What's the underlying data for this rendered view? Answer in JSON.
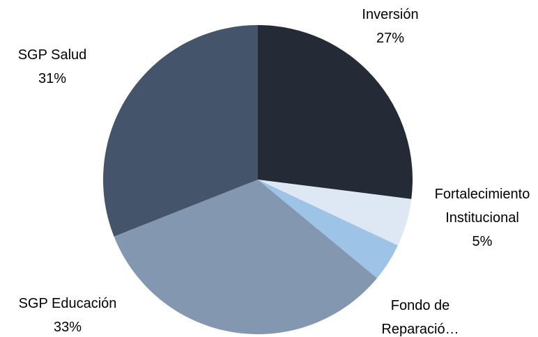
{
  "chart_data": {
    "type": "pie",
    "categories": [
      "Inversión",
      "Fortalecimiento Institucional",
      "Fondo de Reparació…",
      "SGP Educación",
      "SGP Salud"
    ],
    "values": [
      27,
      5,
      4,
      33,
      31
    ],
    "value_labels": [
      "27%",
      "5%",
      null,
      "33%",
      "31%"
    ],
    "colors": [
      "#242a36",
      "#dde8f4",
      "#9dc3e6",
      "#8497b0",
      "#44546a"
    ]
  }
}
